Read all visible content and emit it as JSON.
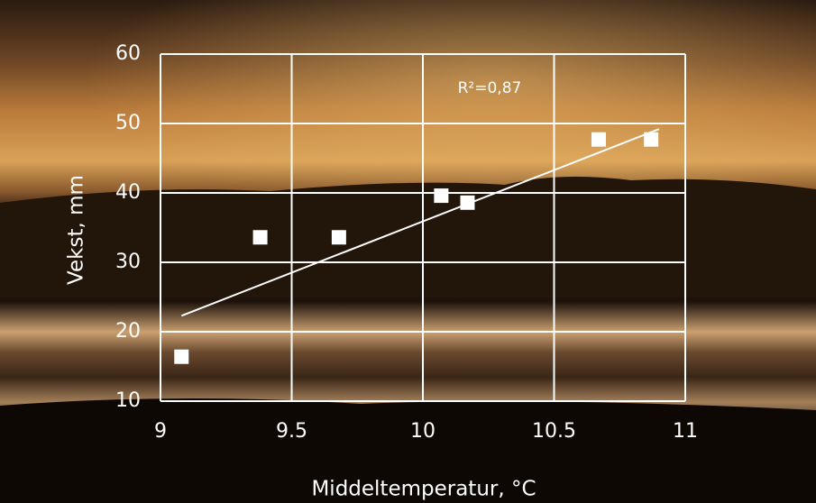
{
  "chart_data": {
    "type": "scatter",
    "x_label": "Middeltemperatur, °C",
    "y_label": "Vekst, mm",
    "annotation": "R²=0,87",
    "series": [
      {
        "color": "#ffffff",
        "x": [
          9.08,
          9.38,
          9.68,
          10.07,
          10.17,
          10.67,
          10.87
        ],
        "values": [
          16.4,
          33.6,
          33.6,
          39.6,
          38.6,
          47.7,
          47.7
        ]
      }
    ],
    "trendline": {
      "color": "#ffffff",
      "x": [
        9.08,
        10.9
      ],
      "values": [
        22.3,
        49.2
      ]
    },
    "xlim": [
      9,
      11
    ],
    "xticks": [
      9,
      9.5,
      10,
      10.5,
      11
    ],
    "ylim": [
      10,
      60
    ],
    "yticks": [
      10,
      20,
      30,
      40,
      50,
      60
    ],
    "grid": true
  }
}
